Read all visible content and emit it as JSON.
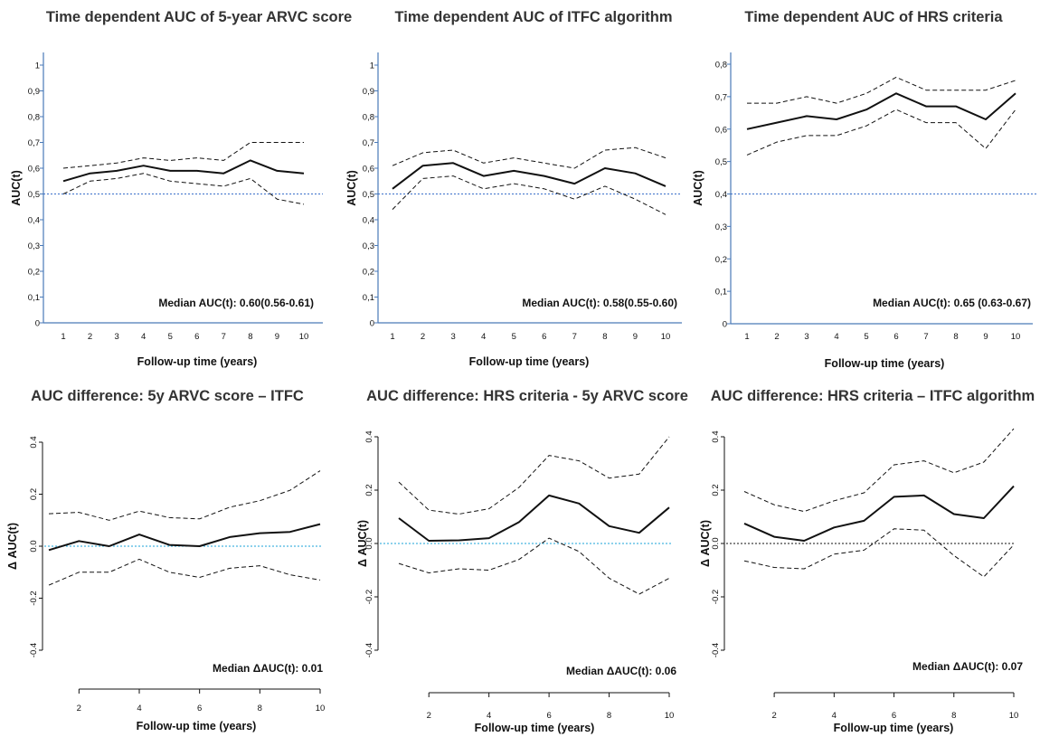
{
  "chart_data": [
    {
      "type": "line",
      "title": "Time dependent AUC of 5-year ARVC score",
      "xlabel": "Follow-up time (years)",
      "ylabel": "AUC(t)",
      "x": [
        1,
        2,
        3,
        4,
        5,
        6,
        7,
        8,
        9,
        10
      ],
      "xticks": [
        "1",
        "2",
        "3",
        "4",
        "5",
        "6",
        "7",
        "8",
        "9",
        "10"
      ],
      "yticks": [
        "0",
        "0,1",
        "0,2",
        "0,3",
        "0,4",
        "0,5",
        "0,6",
        "0,7",
        "0,8",
        "0,9",
        "1"
      ],
      "ylim": [
        0,
        1
      ],
      "reference_line": 0.5,
      "series": [
        {
          "values": [
            0.55,
            0.58,
            0.59,
            0.61,
            0.59,
            0.59,
            0.58,
            0.63,
            0.59,
            0.58
          ]
        },
        {
          "values": [
            0.6,
            0.61,
            0.62,
            0.64,
            0.63,
            0.64,
            0.63,
            0.7,
            0.7,
            0.7
          ]
        },
        {
          "values": [
            0.5,
            0.55,
            0.56,
            0.58,
            0.55,
            0.54,
            0.53,
            0.56,
            0.48,
            0.46
          ]
        }
      ],
      "annotation": "Median AUC(t): 0.60(0.56-0.61)"
    },
    {
      "type": "line",
      "title": "Time dependent AUC of ITFC algorithm",
      "xlabel": "Follow-up time (years)",
      "ylabel": "AUC(t)",
      "x": [
        1,
        2,
        3,
        4,
        5,
        6,
        7,
        8,
        9,
        10
      ],
      "xticks": [
        "1",
        "2",
        "3",
        "4",
        "5",
        "6",
        "7",
        "8",
        "9",
        "10"
      ],
      "yticks": [
        "0",
        "0,1",
        "0,2",
        "0,3",
        "0,4",
        "0,5",
        "0,6",
        "0,7",
        "0,8",
        "0,9",
        "1"
      ],
      "ylim": [
        0,
        1
      ],
      "reference_line": 0.5,
      "series": [
        {
          "values": [
            0.52,
            0.61,
            0.62,
            0.57,
            0.59,
            0.57,
            0.54,
            0.6,
            0.58,
            0.53
          ]
        },
        {
          "values": [
            0.61,
            0.66,
            0.67,
            0.62,
            0.64,
            0.62,
            0.6,
            0.67,
            0.68,
            0.64
          ]
        },
        {
          "values": [
            0.44,
            0.56,
            0.57,
            0.52,
            0.54,
            0.52,
            0.48,
            0.53,
            0.48,
            0.42
          ]
        }
      ],
      "annotation": "Median AUC(t): 0.58(0.55-0.60)"
    },
    {
      "type": "line",
      "title": "Time dependent AUC of HRS criteria",
      "xlabel": "Follow-up time (years)",
      "ylabel": "AUC(t)",
      "x": [
        1,
        2,
        3,
        4,
        5,
        6,
        7,
        8,
        9,
        10
      ],
      "xticks": [
        "1",
        "2",
        "3",
        "4",
        "5",
        "6",
        "7",
        "8",
        "9",
        "10"
      ],
      "yticks": [
        "0",
        "0,1",
        "0,2",
        "0,3",
        "0,4",
        "0,5",
        "0,6",
        "0,7",
        "0,8"
      ],
      "ylim": [
        0,
        0.8
      ],
      "reference_line": 0.4,
      "series": [
        {
          "values": [
            0.6,
            0.62,
            0.64,
            0.63,
            0.66,
            0.71,
            0.67,
            0.67,
            0.63,
            0.71
          ]
        },
        {
          "values": [
            0.68,
            0.68,
            0.7,
            0.68,
            0.71,
            0.76,
            0.72,
            0.72,
            0.72,
            0.75
          ]
        },
        {
          "values": [
            0.52,
            0.56,
            0.58,
            0.58,
            0.61,
            0.66,
            0.62,
            0.62,
            0.54,
            0.66
          ]
        }
      ],
      "annotation": "Median AUC(t): 0.65 (0.63-0.67)"
    },
    {
      "type": "line",
      "title": "AUC difference: 5y ARVC score – ITFC",
      "xlabel": "Follow-up time (years)",
      "ylabel": "Δ AUC(t)",
      "x": [
        1,
        2,
        3,
        4,
        5,
        6,
        7,
        8,
        9,
        10
      ],
      "xticks": [
        "2",
        "4",
        "6",
        "8",
        "10"
      ],
      "yticks": [
        "-0.4",
        "-0.2",
        "0.0",
        "0.2",
        "0.4"
      ],
      "ylim": [
        -0.4,
        0.4
      ],
      "reference_line": 0,
      "series": [
        {
          "values": [
            -0.015,
            0.02,
            0.0,
            0.045,
            0.005,
            0.0,
            0.035,
            0.05,
            0.055,
            0.085
          ]
        },
        {
          "values": [
            0.125,
            0.13,
            0.1,
            0.135,
            0.11,
            0.105,
            0.15,
            0.175,
            0.215,
            0.29
          ]
        },
        {
          "values": [
            -0.15,
            -0.1,
            -0.1,
            -0.05,
            -0.1,
            -0.12,
            -0.085,
            -0.075,
            -0.11,
            -0.13
          ]
        }
      ],
      "annotation": "Median ΔAUC(t): 0.01"
    },
    {
      "type": "line",
      "title": "AUC difference: HRS criteria - 5y ARVC score",
      "xlabel": "Follow-up time (years)",
      "ylabel": "Δ AUC(t)",
      "x": [
        1,
        2,
        3,
        4,
        5,
        6,
        7,
        8,
        9,
        10
      ],
      "xticks": [
        "2",
        "4",
        "6",
        "8",
        "10"
      ],
      "yticks": [
        "-0.4",
        "-0.2",
        "0.0",
        "0.2",
        "0.4"
      ],
      "ylim": [
        -0.4,
        0.4
      ],
      "reference_line": 0,
      "series": [
        {
          "values": [
            0.095,
            0.01,
            0.012,
            0.02,
            0.08,
            0.18,
            0.15,
            0.065,
            0.04,
            0.135
          ]
        },
        {
          "values": [
            0.23,
            0.125,
            0.11,
            0.13,
            0.21,
            0.33,
            0.31,
            0.245,
            0.26,
            0.4
          ]
        },
        {
          "values": [
            -0.075,
            -0.11,
            -0.095,
            -0.1,
            -0.06,
            0.02,
            -0.03,
            -0.13,
            -0.19,
            -0.13
          ]
        }
      ],
      "annotation": "Median ΔAUC(t): 0.06"
    },
    {
      "type": "line",
      "title": "AUC difference: HRS criteria – ITFC algorithm",
      "xlabel": "Follow-up time (years)",
      "ylabel": "Δ AUC(t)",
      "x": [
        1,
        2,
        3,
        4,
        5,
        6,
        7,
        8,
        9,
        10
      ],
      "xticks": [
        "2",
        "4",
        "6",
        "8",
        "10"
      ],
      "yticks": [
        "-0.4",
        "-0.2",
        "0.0",
        "0.2",
        "0.4"
      ],
      "ylim": [
        -0.4,
        0.4
      ],
      "reference_line": 0,
      "series": [
        {
          "values": [
            0.075,
            0.025,
            0.01,
            0.06,
            0.085,
            0.175,
            0.18,
            0.11,
            0.095,
            0.215
          ]
        },
        {
          "values": [
            0.195,
            0.145,
            0.12,
            0.16,
            0.19,
            0.295,
            0.31,
            0.265,
            0.305,
            0.43
          ]
        },
        {
          "values": [
            -0.065,
            -0.09,
            -0.095,
            -0.04,
            -0.025,
            0.055,
            0.05,
            -0.045,
            -0.125,
            -0.005
          ]
        }
      ],
      "annotation": "Median ΔAUC(t): 0.07"
    }
  ]
}
